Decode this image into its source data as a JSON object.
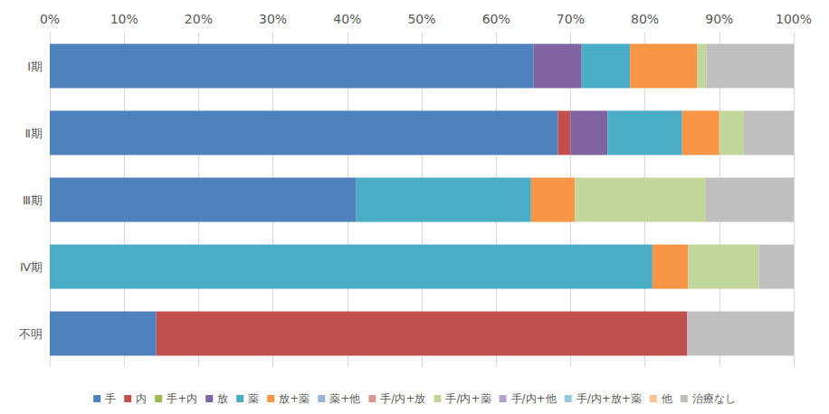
{
  "chart_data": {
    "type": "bar",
    "orientation": "horizontal",
    "stacked": true,
    "grid": true,
    "legend": "bottom",
    "categories": [
      "Ⅰ期",
      "Ⅱ期",
      "Ⅲ期",
      "Ⅳ期",
      "不明"
    ],
    "xlim": [
      0,
      100
    ],
    "xticks": [
      {
        "value": 0,
        "label": "0%"
      },
      {
        "value": 10,
        "label": "10%"
      },
      {
        "value": 20,
        "label": "20%"
      },
      {
        "value": 30,
        "label": "30%"
      },
      {
        "value": 40,
        "label": "40%"
      },
      {
        "value": 50,
        "label": "50%"
      },
      {
        "value": 60,
        "label": "60%"
      },
      {
        "value": 70,
        "label": "70%"
      },
      {
        "value": 80,
        "label": "80%"
      },
      {
        "value": 90,
        "label": "90%"
      },
      {
        "value": 100,
        "label": "100%"
      }
    ],
    "series": [
      {
        "name": "手",
        "color": "#4f81bd",
        "values": [
          65.0,
          68.3,
          41.2,
          0,
          14.3
        ]
      },
      {
        "name": "内",
        "color": "#c0504d",
        "values": [
          0,
          1.7,
          0,
          0,
          71.4
        ]
      },
      {
        "name": "手+内",
        "color": "#9bbb59",
        "values": [
          0,
          0,
          0,
          0,
          0
        ]
      },
      {
        "name": "放",
        "color": "#8064a2",
        "values": [
          6.5,
          5.0,
          0,
          0,
          0
        ]
      },
      {
        "name": "薬",
        "color": "#4bacc6",
        "values": [
          6.5,
          10.0,
          23.5,
          81.0,
          0
        ]
      },
      {
        "name": "放+薬",
        "color": "#f79646",
        "values": [
          9.0,
          5.0,
          5.9,
          4.8,
          0
        ]
      },
      {
        "name": "薬+他",
        "color": "#95b3d7",
        "values": [
          0,
          0,
          0,
          0,
          0
        ]
      },
      {
        "name": "手/内+放",
        "color": "#d99694",
        "values": [
          0,
          0,
          0,
          0,
          0
        ]
      },
      {
        "name": "手/内+薬",
        "color": "#c3d69b",
        "values": [
          1.3,
          3.3,
          17.6,
          9.5,
          0
        ]
      },
      {
        "name": "手/内+他",
        "color": "#b3a2c7",
        "values": [
          0,
          0,
          0,
          0,
          0
        ]
      },
      {
        "name": "手/内+放+薬",
        "color": "#93cddd",
        "values": [
          0,
          0,
          0,
          0,
          0
        ]
      },
      {
        "name": "他",
        "color": "#fac090",
        "values": [
          0,
          0,
          0,
          0,
          0
        ]
      },
      {
        "name": "治療なし",
        "color": "#bfbfbf",
        "values": [
          11.7,
          6.7,
          11.8,
          4.7,
          14.3
        ]
      }
    ]
  }
}
